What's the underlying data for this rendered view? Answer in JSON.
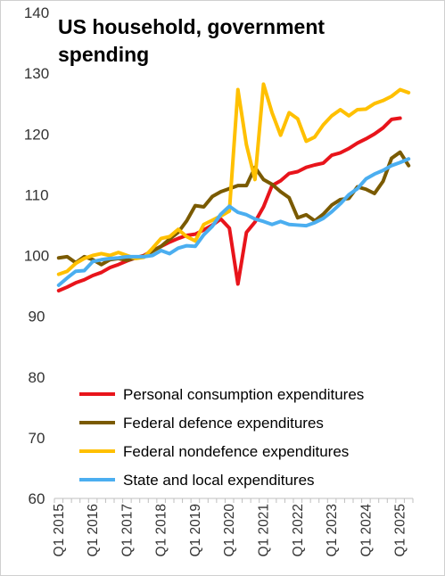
{
  "chart_data": {
    "type": "line",
    "title": "US household, government spending",
    "xlabel": "",
    "ylabel": "",
    "ylim": [
      60,
      140
    ],
    "yticks": [
      60,
      70,
      80,
      90,
      100,
      110,
      120,
      130,
      140
    ],
    "x_tick_labels": [
      "Q1 2015",
      "Q1 2016",
      "Q1 2017",
      "Q1 2018",
      "Q1 2019",
      "Q1 2020",
      "Q1 2021",
      "Q1 2022",
      "Q1 2023",
      "Q1 2024",
      "Q1 2025"
    ],
    "x": [
      "Q1 2015",
      "Q2 2015",
      "Q3 2015",
      "Q4 2015",
      "Q1 2016",
      "Q2 2016",
      "Q3 2016",
      "Q4 2016",
      "Q1 2017",
      "Q2 2017",
      "Q3 2017",
      "Q4 2017",
      "Q1 2018",
      "Q2 2018",
      "Q3 2018",
      "Q4 2018",
      "Q1 2019",
      "Q2 2019",
      "Q3 2019",
      "Q4 2019",
      "Q1 2020",
      "Q2 2020",
      "Q3 2020",
      "Q4 2020",
      "Q1 2021",
      "Q2 2021",
      "Q3 2021",
      "Q4 2021",
      "Q1 2022",
      "Q2 2022",
      "Q3 2022",
      "Q4 2022",
      "Q1 2023",
      "Q2 2023",
      "Q3 2023",
      "Q4 2023",
      "Q1 2024",
      "Q2 2024",
      "Q3 2024",
      "Q4 2024",
      "Q1 2025",
      "Q2 2025"
    ],
    "grid": false,
    "legend_position": "bottom",
    "series": [
      {
        "name": "Personal consumption expenditures",
        "color": "#e8141b",
        "values": [
          94.2,
          94.8,
          95.5,
          96.0,
          96.7,
          97.2,
          98.0,
          98.5,
          99.1,
          99.6,
          100.0,
          100.8,
          101.5,
          102.2,
          102.8,
          103.3,
          103.5,
          104.2,
          105.0,
          106.0,
          104.5,
          95.3,
          103.8,
          105.5,
          108.0,
          111.5,
          112.3,
          113.5,
          113.8,
          114.5,
          114.9,
          115.2,
          116.5,
          116.9,
          117.6,
          118.5,
          119.2,
          120.0,
          121.0,
          122.4,
          122.6,
          null
        ]
      },
      {
        "name": "Federal defence expenditures",
        "color": "#7a5a00",
        "values": [
          99.6,
          99.8,
          98.8,
          99.8,
          99.3,
          98.5,
          99.3,
          99.5,
          99.2,
          99.6,
          99.9,
          100.7,
          101.5,
          102.7,
          103.8,
          105.7,
          108.2,
          108.0,
          109.7,
          110.5,
          111.0,
          111.5,
          111.5,
          114.5,
          112.5,
          111.7,
          110.5,
          109.5,
          106.2,
          106.7,
          105.7,
          106.8,
          108.3,
          109.2,
          109.4,
          111.3,
          110.9,
          110.2,
          112.2,
          116.0,
          117.0,
          114.8
        ]
      },
      {
        "name": "Federal nondefence expenditures",
        "color": "#ffc000",
        "values": [
          96.9,
          97.4,
          98.7,
          99.5,
          100.0,
          100.3,
          100.0,
          100.5,
          100.0,
          99.5,
          99.7,
          101.2,
          102.8,
          103.1,
          104.3,
          103.1,
          102.4,
          105.1,
          105.8,
          106.5,
          107.3,
          127.3,
          118.2,
          112.5,
          128.2,
          123.5,
          119.8,
          123.5,
          122.5,
          118.8,
          119.5,
          121.5,
          123.0,
          124.0,
          123.0,
          124.0,
          124.1,
          125.0,
          125.5,
          126.2,
          127.3,
          126.8
        ]
      },
      {
        "name": "State and local expenditures",
        "color": "#4baef0",
        "values": [
          95.1,
          96.3,
          97.4,
          97.5,
          99.0,
          99.3,
          99.5,
          99.6,
          99.8,
          99.8,
          99.8,
          100.0,
          100.8,
          100.3,
          101.2,
          101.6,
          101.5,
          103.4,
          104.8,
          106.8,
          108.1,
          107.1,
          106.7,
          106.0,
          105.6,
          105.1,
          105.6,
          105.1,
          105.0,
          104.9,
          105.4,
          106.1,
          107.2,
          108.5,
          110.0,
          111.0,
          112.6,
          113.4,
          114.0,
          114.8,
          115.3,
          115.9
        ]
      }
    ]
  }
}
